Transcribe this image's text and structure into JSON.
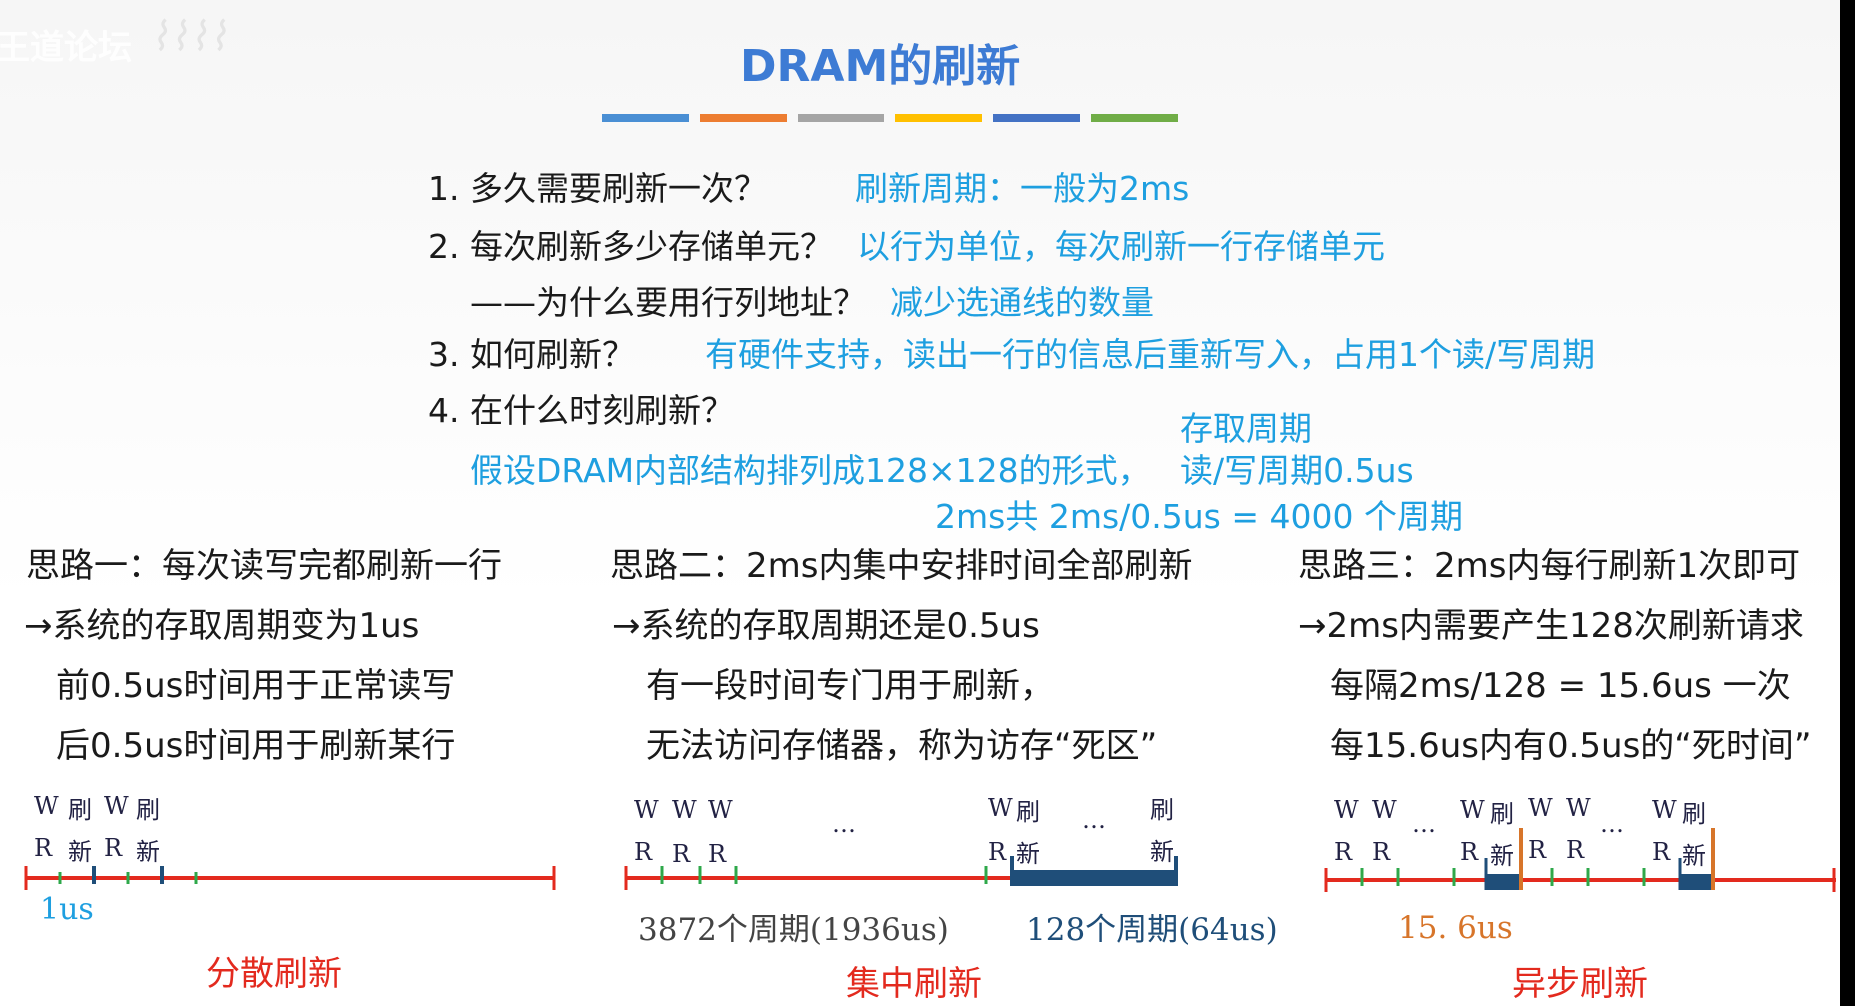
{
  "watermark": {
    "site": "王道论坛",
    "logo_text": ""
  },
  "title": "DRAM的刷新",
  "questions": [
    {
      "q": "1. 多久需要刷新一次？",
      "a": "刷新周期：一般为2ms"
    },
    {
      "q": "2. 每次刷新多少存储单元？",
      "a": "以行为单位，每次刷新一行存储单元"
    },
    {
      "q": "——为什么要用行列地址？",
      "a": "减少选通线的数量"
    },
    {
      "q": "3. 如何刷新？",
      "a": "有硬件支持，读出一行的信息后重新写入，占用1个读/写周期"
    },
    {
      "q": "4. 在什么时刻刷新？",
      "a": ""
    }
  ],
  "assumption": {
    "access_cycle": "存取周期",
    "line1": "假设DRAM内部结构排列成128×128的形式，",
    "rw_cycle": "读/写周期0.5us",
    "line2": "2ms共 2ms/0.5us = 4000 个周期"
  },
  "ideas": [
    {
      "title": "思路一：每次读写完都刷新一行",
      "l1": "→系统的存取周期变为1us",
      "l2": "前0.5us时间用于正常读写",
      "l3": "后0.5us时间用于刷新某行"
    },
    {
      "title": "思路二：2ms内集中安排时间全部刷新",
      "l1": "→系统的存取周期还是0.5us",
      "l2": "有一段时间专门用于刷新，",
      "l3": "无法访问存储器，称为访存“死区”"
    },
    {
      "title": "思路三：2ms内每行刷新1次即可",
      "l1": "→2ms内需要产生128次刷新请求",
      "l2": "每隔2ms/128 = 15.6us 一次",
      "l3": "每15.6us内有0.5us的“死时间”"
    }
  ],
  "diagrams": {
    "w": "W",
    "r": "R",
    "shua": "刷",
    "xin": "新",
    "dots": "…",
    "d1_label": "1us",
    "d1_name": "分散刷新",
    "d2_left": "3872个周期(1936us)",
    "d2_right": "128个周期(64us)",
    "d2_name": "集中刷新",
    "d3_label": "15. 6us",
    "d3_name": "异步刷新"
  },
  "colors": {
    "title": "#3d7bd4",
    "answer": "#1e9fe0",
    "timeline": "#e32a1e",
    "block": "#1f4e79",
    "tick": "#2ea84a",
    "accent": "#d7752a"
  },
  "title_bar_colors": [
    "#4a8fd4",
    "#ed7d31",
    "#a5a5a5",
    "#ffc000",
    "#4472c4",
    "#70ad47"
  ]
}
